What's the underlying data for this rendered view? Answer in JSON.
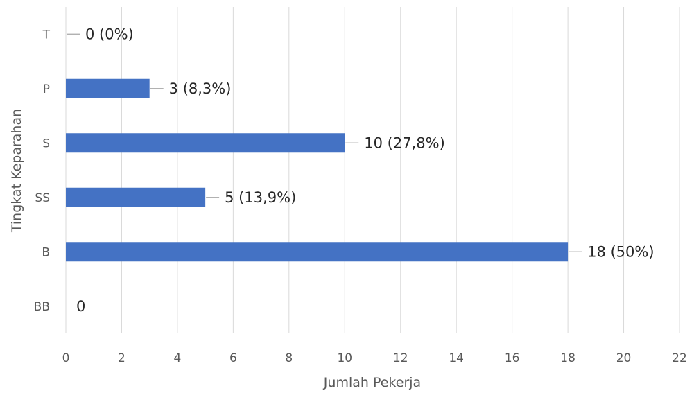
{
  "chart_data": {
    "type": "bar",
    "orientation": "horizontal",
    "categories": [
      "BB",
      "B",
      "SS",
      "S",
      "P",
      "T"
    ],
    "values": [
      0,
      18,
      5,
      10,
      3,
      0
    ],
    "data_labels": [
      "0",
      "18 (50%)",
      "5 (13,9%)",
      "10 (27,8%)",
      "3 (8,3%)",
      "0 (0%)"
    ],
    "xlabel": "Jumlah Pekerja",
    "ylabel": "Tingkat Keparahan",
    "xlim": [
      0,
      22
    ],
    "xticks": [
      0,
      2,
      4,
      6,
      8,
      10,
      12,
      14,
      16,
      18,
      20,
      22
    ],
    "grid": true,
    "bar_color": "#4472c4",
    "legend": "none"
  }
}
